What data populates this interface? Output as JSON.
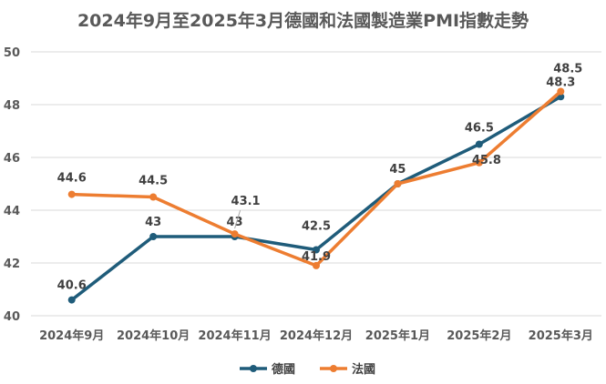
{
  "chart_data": {
    "type": "line",
    "title": "2024年9月至2025年3月德國和法國製造業PMI指數走勢",
    "categories": [
      "2024年9月",
      "2024年10月",
      "2024年11月",
      "2024年12月",
      "2025年1月",
      "2025年2月",
      "2025年3月"
    ],
    "series": [
      {
        "name": "德國",
        "values": [
          40.6,
          43,
          43,
          42.5,
          45,
          46.5,
          48.3
        ],
        "color": "#1f5c7a"
      },
      {
        "name": "法國",
        "values": [
          44.6,
          44.5,
          43.1,
          41.9,
          45,
          45.8,
          48.5
        ],
        "color": "#ed7d31"
      }
    ],
    "ylim": [
      40,
      50
    ],
    "yticks": [
      40,
      42,
      44,
      46,
      48,
      50
    ],
    "xlabel": "",
    "ylabel": "",
    "grid": true,
    "legend": "bottom"
  }
}
